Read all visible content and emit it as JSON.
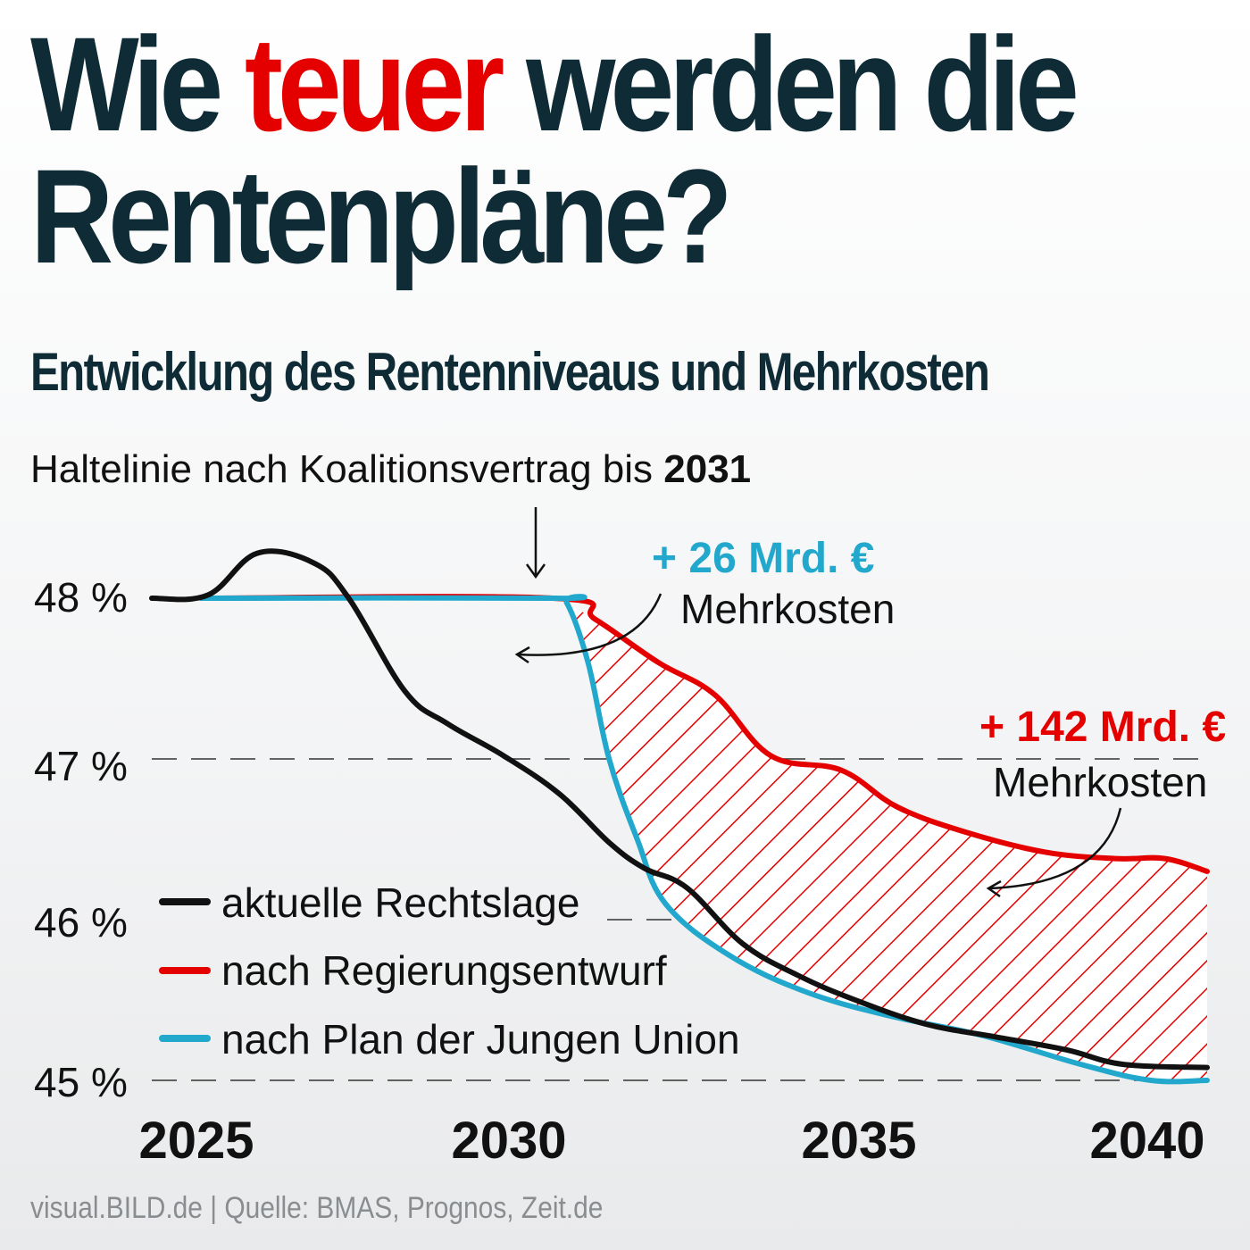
{
  "header": {
    "title_part1": "Wie ",
    "title_highlight": "teuer",
    "title_part2": " werden die",
    "title_line2": "Rentenpläne?",
    "subtitle": "Entwicklung des Rentenniveaus und Mehrkosten"
  },
  "colors": {
    "title": "#0e2b36",
    "highlight": "#e50000",
    "black_line": "#111111",
    "red_line": "#e50000",
    "blue_line": "#22a8cc",
    "source_text": "#8a8d90"
  },
  "chart_data": {
    "type": "line",
    "ylim": [
      45,
      48.5
    ],
    "xlim": [
      2025,
      2040
    ],
    "x_ticks": [
      2025,
      2030,
      2035,
      2040
    ],
    "y_ticks": [
      {
        "value": 48,
        "label": "48 %"
      },
      {
        "value": 47,
        "label": "47 %"
      },
      {
        "value": 46,
        "label": "46 %"
      },
      {
        "value": 45,
        "label": "45 %"
      }
    ],
    "grid": "dashed horizontal lines at 45, 46, 47 %",
    "legend_position": "bottom-left",
    "series": [
      {
        "name": "aktuelle Rechtslage",
        "color": "#111111",
        "points": [
          [
            2025,
            48
          ],
          [
            2025.8,
            48.02
          ],
          [
            2026.5,
            48.28
          ],
          [
            2027.3,
            48.22
          ],
          [
            2027.8,
            48.0
          ],
          [
            2028.6,
            47.42
          ],
          [
            2029.2,
            47.22
          ],
          [
            2030,
            47.02
          ],
          [
            2030.8,
            46.78
          ],
          [
            2031.5,
            46.48
          ],
          [
            2032,
            46.32
          ],
          [
            2032.6,
            46.2
          ],
          [
            2033.4,
            45.85
          ],
          [
            2034.2,
            45.65
          ],
          [
            2035,
            45.5
          ],
          [
            2036,
            45.35
          ],
          [
            2037,
            45.27
          ],
          [
            2038,
            45.19
          ],
          [
            2038.8,
            45.1
          ],
          [
            2040,
            45.08
          ]
        ]
      },
      {
        "name": "nach Regierungsentwurf",
        "color": "#e50000",
        "points": [
          [
            2025.7,
            48
          ],
          [
            2030.7,
            48
          ],
          [
            2031.3,
            47.87
          ],
          [
            2032.2,
            47.6
          ],
          [
            2033,
            47.4
          ],
          [
            2033.8,
            47.02
          ],
          [
            2034.8,
            46.93
          ],
          [
            2035.6,
            46.7
          ],
          [
            2036.6,
            46.54
          ],
          [
            2037.7,
            46.42
          ],
          [
            2038.7,
            46.38
          ],
          [
            2039.4,
            46.38
          ],
          [
            2040,
            46.3
          ]
        ]
      },
      {
        "name": "nach Plan der Jungen Union",
        "color": "#22a8cc",
        "points": [
          [
            2025.7,
            48
          ],
          [
            2030.7,
            48
          ],
          [
            2030.9,
            47.97
          ],
          [
            2031.2,
            47.6
          ],
          [
            2031.5,
            47.0
          ],
          [
            2031.9,
            46.5
          ],
          [
            2032.3,
            46.1
          ],
          [
            2033.2,
            45.78
          ],
          [
            2034.3,
            45.55
          ],
          [
            2035.5,
            45.4
          ],
          [
            2036.8,
            45.28
          ],
          [
            2038.2,
            45.1
          ],
          [
            2039.2,
            45.0
          ],
          [
            2040,
            45.0
          ]
        ]
      }
    ],
    "annotations": [
      {
        "text": "Haltelinie nach Koalitionsvertrag bis ",
        "bold": "2031"
      },
      {
        "value": "+ 26 Mrd. €",
        "label": "Mehrkosten",
        "color": "#22a8cc"
      },
      {
        "value": "+ 142 Mrd. €",
        "label": "Mehrkosten",
        "color": "#e50000"
      }
    ]
  },
  "footer": {
    "source": "visual.BILD.de | Quelle: BMAS, Prognos, Zeit.de"
  }
}
